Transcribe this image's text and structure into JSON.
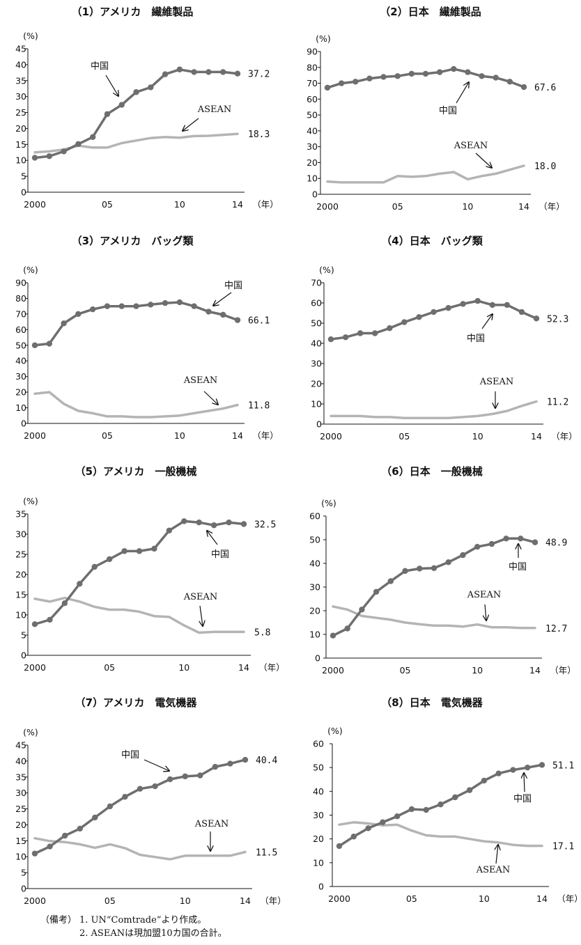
{
  "chart_data": [
    {
      "type": "line",
      "title": "（1）アメリカ　繊維製品",
      "yunit": "(%)",
      "xunit": "（年）",
      "ylim": [
        0,
        45
      ],
      "yticks": [
        0,
        5,
        10,
        15,
        20,
        25,
        30,
        35,
        40,
        45
      ],
      "x": [
        2000,
        2001,
        2002,
        2003,
        2004,
        2005,
        2006,
        2007,
        2008,
        2009,
        2010,
        2011,
        2012,
        2013,
        2014
      ],
      "xtick_labels": [
        "2000",
        "05",
        "10",
        "14"
      ],
      "series": [
        {
          "name": "中国",
          "color": "#6e6e6e",
          "markers": true,
          "values": [
            10.8,
            11.3,
            12.8,
            15.1,
            17.3,
            24.5,
            27.4,
            31.4,
            32.9,
            37.0,
            38.5,
            37.7,
            37.7,
            37.7,
            37.2
          ],
          "end_label": "37.2"
        },
        {
          "name": "ASEAN",
          "color": "#b4b4b4",
          "markers": false,
          "values": [
            12.5,
            12.8,
            13.4,
            14.6,
            14.0,
            14.0,
            15.4,
            16.2,
            17.0,
            17.3,
            17.1,
            17.6,
            17.7,
            18.0,
            18.3
          ],
          "end_label": "18.3"
        }
      ]
    },
    {
      "type": "line",
      "title": "（2）日本　繊維製品",
      "yunit": "(%)",
      "xunit": "（年）",
      "ylim": [
        0,
        90
      ],
      "yticks": [
        0,
        10,
        20,
        30,
        40,
        50,
        60,
        70,
        80,
        90
      ],
      "x": [
        2000,
        2001,
        2002,
        2003,
        2004,
        2005,
        2006,
        2007,
        2008,
        2009,
        2010,
        2011,
        2012,
        2013,
        2014
      ],
      "xtick_labels": [
        "2000",
        "05",
        "10",
        "14"
      ],
      "series": [
        {
          "name": "中国",
          "color": "#6e6e6e",
          "markers": true,
          "values": [
            67.2,
            70.0,
            71.0,
            73.0,
            74.0,
            74.5,
            76.0,
            76.0,
            77.0,
            79.0,
            77.0,
            74.5,
            73.5,
            71.0,
            67.6
          ],
          "end_label": "67.6"
        },
        {
          "name": "ASEAN",
          "color": "#b4b4b4",
          "markers": false,
          "values": [
            8.0,
            7.5,
            7.5,
            7.5,
            7.5,
            11.5,
            11.0,
            11.5,
            13.0,
            14.0,
            9.5,
            11.5,
            13.0,
            15.5,
            18.0
          ],
          "end_label": "18.0"
        }
      ]
    },
    {
      "type": "line",
      "title": "（3）アメリカ　バッグ類",
      "yunit": "(%)",
      "xunit": "（年）",
      "ylim": [
        0,
        90
      ],
      "yticks": [
        0,
        10,
        20,
        30,
        40,
        50,
        60,
        70,
        80,
        90
      ],
      "x": [
        2000,
        2001,
        2002,
        2003,
        2004,
        2005,
        2006,
        2007,
        2008,
        2009,
        2010,
        2011,
        2012,
        2013,
        2014
      ],
      "xtick_labels": [
        "2000",
        "05",
        "10",
        "14"
      ],
      "series": [
        {
          "name": "中国",
          "color": "#6e6e6e",
          "markers": true,
          "values": [
            50.0,
            51.0,
            64.0,
            70.0,
            73.0,
            75.0,
            75.0,
            75.0,
            76.0,
            77.0,
            77.5,
            75.0,
            71.5,
            69.5,
            66.1
          ],
          "end_label": "66.1"
        },
        {
          "name": "ASEAN",
          "color": "#b4b4b4",
          "markers": false,
          "values": [
            19.0,
            20.0,
            12.5,
            8.0,
            6.5,
            4.5,
            4.5,
            4.0,
            4.0,
            4.5,
            5.0,
            6.5,
            8.0,
            9.5,
            11.8
          ],
          "end_label": "11.8"
        }
      ]
    },
    {
      "type": "line",
      "title": "（4）日本　バッグ類",
      "yunit": "(%)",
      "xunit": "（年）",
      "ylim": [
        0,
        70
      ],
      "yticks": [
        0,
        10,
        20,
        30,
        40,
        50,
        60,
        70
      ],
      "x": [
        2000,
        2001,
        2002,
        2003,
        2004,
        2005,
        2006,
        2007,
        2008,
        2009,
        2010,
        2011,
        2012,
        2013,
        2014
      ],
      "xtick_labels": [
        "2000",
        "05",
        "10",
        "14"
      ],
      "series": [
        {
          "name": "中国",
          "color": "#6e6e6e",
          "markers": true,
          "values": [
            42.0,
            43.0,
            45.0,
            45.0,
            47.5,
            50.5,
            53.0,
            55.5,
            57.5,
            59.5,
            61.0,
            59.0,
            59.0,
            55.5,
            52.3
          ],
          "end_label": "52.3"
        },
        {
          "name": "ASEAN",
          "color": "#b4b4b4",
          "markers": false,
          "values": [
            4.0,
            4.0,
            4.0,
            3.5,
            3.5,
            3.0,
            3.0,
            3.0,
            3.0,
            3.5,
            4.0,
            5.0,
            6.5,
            9.0,
            11.2
          ],
          "end_label": "11.2"
        }
      ]
    },
    {
      "type": "line",
      "title": "（5）アメリカ　一般機械",
      "yunit": "(%)",
      "xunit": "（年）",
      "ylim": [
        0,
        35
      ],
      "yticks": [
        0,
        5,
        10,
        15,
        20,
        25,
        30,
        35
      ],
      "x": [
        2000,
        2001,
        2002,
        2003,
        2004,
        2005,
        2006,
        2007,
        2008,
        2009,
        2010,
        2011,
        2012,
        2013,
        2014
      ],
      "xtick_labels": [
        "2000",
        "05",
        "10",
        "14"
      ],
      "series": [
        {
          "name": "中国",
          "color": "#6e6e6e",
          "markers": true,
          "values": [
            7.7,
            8.8,
            12.9,
            17.7,
            21.9,
            23.8,
            25.8,
            25.8,
            26.4,
            30.9,
            33.2,
            32.9,
            32.2,
            32.9,
            32.5
          ],
          "end_label": "32.5"
        },
        {
          "name": "ASEAN",
          "color": "#b4b4b4",
          "markers": false,
          "values": [
            14.0,
            13.3,
            14.2,
            13.3,
            12.0,
            11.3,
            11.3,
            10.8,
            9.7,
            9.5,
            7.4,
            5.6,
            5.8,
            5.8,
            5.8
          ],
          "end_label": "5.8"
        }
      ]
    },
    {
      "type": "line",
      "title": "（6）日本　一般機械",
      "yunit": "(%)",
      "xunit": "（年）",
      "ylim": [
        0,
        60
      ],
      "yticks": [
        0,
        10,
        20,
        30,
        40,
        50,
        60
      ],
      "x": [
        2000,
        2001,
        2002,
        2003,
        2004,
        2005,
        2006,
        2007,
        2008,
        2009,
        2010,
        2011,
        2012,
        2013,
        2014
      ],
      "xtick_labels": [
        "2000",
        "05",
        "10",
        "14"
      ],
      "series": [
        {
          "name": "中国",
          "color": "#6e6e6e",
          "markers": true,
          "values": [
            9.5,
            12.5,
            20.5,
            28.0,
            32.5,
            36.8,
            37.8,
            38.0,
            40.5,
            43.5,
            47.0,
            48.2,
            50.5,
            50.5,
            48.9
          ],
          "end_label": "48.9"
        },
        {
          "name": "ASEAN",
          "color": "#b4b4b4",
          "markers": false,
          "values": [
            21.8,
            20.5,
            17.8,
            17.0,
            16.2,
            15.0,
            14.3,
            13.7,
            13.7,
            13.3,
            14.2,
            13.0,
            13.0,
            12.7,
            12.7
          ],
          "end_label": "12.7"
        }
      ]
    },
    {
      "type": "line",
      "title": "（7）アメリカ　電気機器",
      "yunit": "(%)",
      "xunit": "（年）",
      "ylim": [
        0,
        45
      ],
      "yticks": [
        0,
        5,
        10,
        15,
        20,
        25,
        30,
        35,
        40,
        45
      ],
      "x": [
        2000,
        2001,
        2002,
        2003,
        2004,
        2005,
        2006,
        2007,
        2008,
        2009,
        2010,
        2011,
        2012,
        2013,
        2014
      ],
      "xtick_labels": [
        "2000",
        "05",
        "10",
        "14"
      ],
      "series": [
        {
          "name": "中国",
          "color": "#6e6e6e",
          "markers": true,
          "values": [
            11.0,
            13.2,
            16.6,
            18.8,
            22.3,
            25.8,
            28.8,
            31.3,
            32.1,
            34.3,
            35.2,
            35.5,
            38.2,
            39.2,
            40.4
          ],
          "end_label": "40.4"
        },
        {
          "name": "ASEAN",
          "color": "#b4b4b4",
          "markers": false,
          "values": [
            15.8,
            14.9,
            14.6,
            13.9,
            12.8,
            13.9,
            12.7,
            10.6,
            9.9,
            9.2,
            10.3,
            10.3,
            10.3,
            10.3,
            11.5
          ],
          "end_label": "11.5"
        }
      ]
    },
    {
      "type": "line",
      "title": "（8）日本　電気機器",
      "yunit": "(%)",
      "xunit": "（年）",
      "ylim": [
        0,
        60
      ],
      "yticks": [
        0,
        10,
        20,
        30,
        40,
        50,
        60
      ],
      "x": [
        2000,
        2001,
        2002,
        2003,
        2004,
        2005,
        2006,
        2007,
        2008,
        2009,
        2010,
        2011,
        2012,
        2013,
        2014
      ],
      "xtick_labels": [
        "2000",
        "05",
        "10",
        "14"
      ],
      "series": [
        {
          "name": "中国",
          "color": "#6e6e6e",
          "markers": true,
          "values": [
            17.0,
            21.0,
            24.5,
            27.0,
            29.5,
            32.5,
            32.2,
            34.5,
            37.5,
            40.5,
            44.5,
            47.5,
            49.0,
            50.0,
            51.1
          ],
          "end_label": "51.1"
        },
        {
          "name": "ASEAN",
          "color": "#b4b4b4",
          "markers": false,
          "values": [
            26.0,
            27.0,
            26.5,
            25.7,
            26.0,
            23.5,
            21.5,
            21.0,
            21.0,
            20.0,
            19.0,
            18.5,
            17.5,
            17.1,
            17.1
          ],
          "end_label": "17.1"
        }
      ]
    }
  ],
  "notes": {
    "prefix": "（備考）",
    "line1": "1. UN“Comtrade”より作成。",
    "line2": "2. ASEANは現加盟10カ国の合計。"
  }
}
